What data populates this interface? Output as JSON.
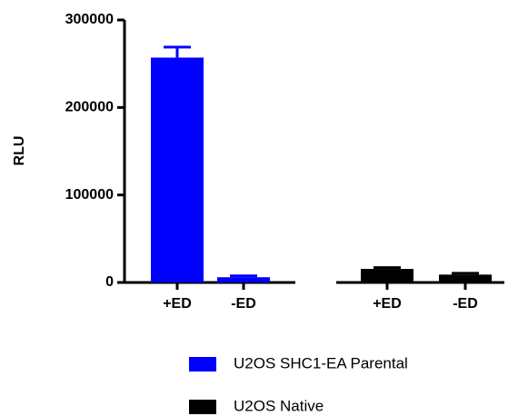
{
  "chart_data": {
    "type": "bar",
    "y_label": "RLU",
    "categories": [
      "+ED",
      "-ED",
      "+ED",
      "-ED"
    ],
    "series": [
      {
        "name": "U2OS SHC1-EA Parental",
        "color": "#0000ff",
        "values": [
          257000,
          6000,
          null,
          null
        ],
        "errors": [
          12000,
          1500,
          null,
          null
        ]
      },
      {
        "name": "U2OS Native",
        "color": "#000000",
        "values": [
          null,
          null,
          15500,
          9000
        ],
        "errors": [
          null,
          null,
          1500,
          1500
        ]
      }
    ],
    "ylim": [
      0,
      300000
    ],
    "yticks": [
      0,
      100000,
      200000,
      300000
    ],
    "grid": false
  }
}
